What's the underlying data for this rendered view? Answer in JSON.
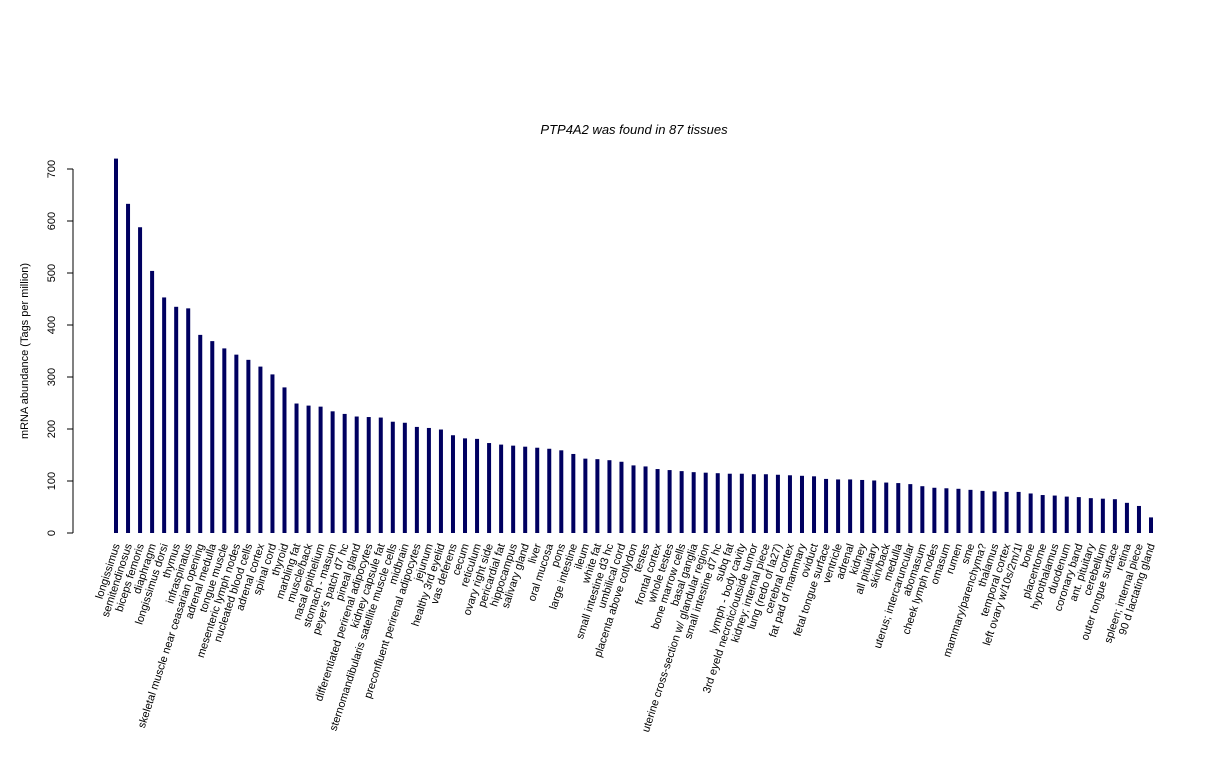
{
  "chart_data": {
    "type": "bar",
    "title": "PTP4A2  was found in  87  tissues",
    "y_label": "mRNA abundance (Tags per million)",
    "color": "#000060",
    "ylim": [
      0,
      700
    ],
    "yticks": [
      0,
      100,
      200,
      300,
      400,
      500,
      600,
      700
    ],
    "categories": [
      "longissimus",
      "semitendinosus",
      "biceps femoris",
      "diaphragm",
      "longissimus dorsi",
      "thymus",
      "infraspinatus",
      "skeletal muscle near ceasarian opening",
      "adrenal medulla",
      "tongue muscle",
      "mesenteric lymph nodes",
      "nucleated blood cells",
      "adrenal cortex",
      "spinal cord",
      "thyroid",
      "marbling fat",
      "muscle/back",
      "nasal epithelium",
      "stomach - masum",
      "peyer's patch d7 hc",
      "pineal gland",
      "differentiated perirenal adipocytes",
      "kidney capsule fat",
      "sternomandibularis satellite muscle cells",
      "midbrain",
      "preconfluent perirenal adipocytes",
      "jejunum",
      "healthy 3rd eyelid",
      "vas deferens",
      "cecum",
      "reticulum",
      "ovary right side",
      "pericardial fat",
      "hippocampus",
      "salivary gland",
      "liver",
      "oral mucosa",
      "pons",
      "large intestine",
      "ileum",
      "white fat",
      "small intestine d3 hc",
      "umbilical cord",
      "placenta above cotlydon",
      "testes",
      "frontal cortex",
      "whole testes",
      "bone marrow cells",
      "basal ganglia",
      "uterine cross-section w/ glandular region",
      "small intestine d7 hc",
      "subq fat",
      "lymph - body cavity",
      "3rd eyeld necrotic/outside tumor",
      "kidney; internal piece",
      "lung (redo of la27)",
      "cerebral cortex",
      "fat pad of mammary",
      "oviduct",
      "fetal tongue surface",
      "ventricle",
      "adrenal",
      "kidney",
      "all pituitary",
      "skin/back",
      "medulla",
      "uterus; intercaruncular",
      "abomasum",
      "cheek lymph nodes",
      "omasum",
      "rumen",
      "sme",
      "mammary/parenchyma?",
      "thalamus",
      "temporal cortex",
      "left ovary w/10s/2m/1l",
      "bone",
      "placentome",
      "hypothalamus",
      "duodenum",
      "coronary band",
      "ant. pituitary",
      "cerebellum",
      "outer tongue surface",
      "retina",
      "spleen; internal piece",
      "90 d lactating gland"
    ],
    "values": [
      720,
      633,
      588,
      504,
      453,
      435,
      432,
      381,
      369,
      355,
      343,
      333,
      320,
      305,
      280,
      249,
      245,
      243,
      234,
      229,
      224,
      223,
      222,
      214,
      212,
      204,
      202,
      199,
      188,
      182,
      181,
      173,
      170,
      168,
      166,
      164,
      162,
      159,
      152,
      143,
      142,
      140,
      137,
      130,
      128,
      123,
      121,
      119,
      117,
      116,
      115,
      114,
      114,
      113,
      113,
      112,
      111,
      110,
      109,
      104,
      103,
      103,
      102,
      101,
      97,
      96,
      94,
      90,
      87,
      86,
      85,
      83,
      81,
      80,
      79,
      79,
      76,
      73,
      72,
      70,
      69,
      67,
      66,
      65,
      58,
      52,
      30
    ]
  }
}
